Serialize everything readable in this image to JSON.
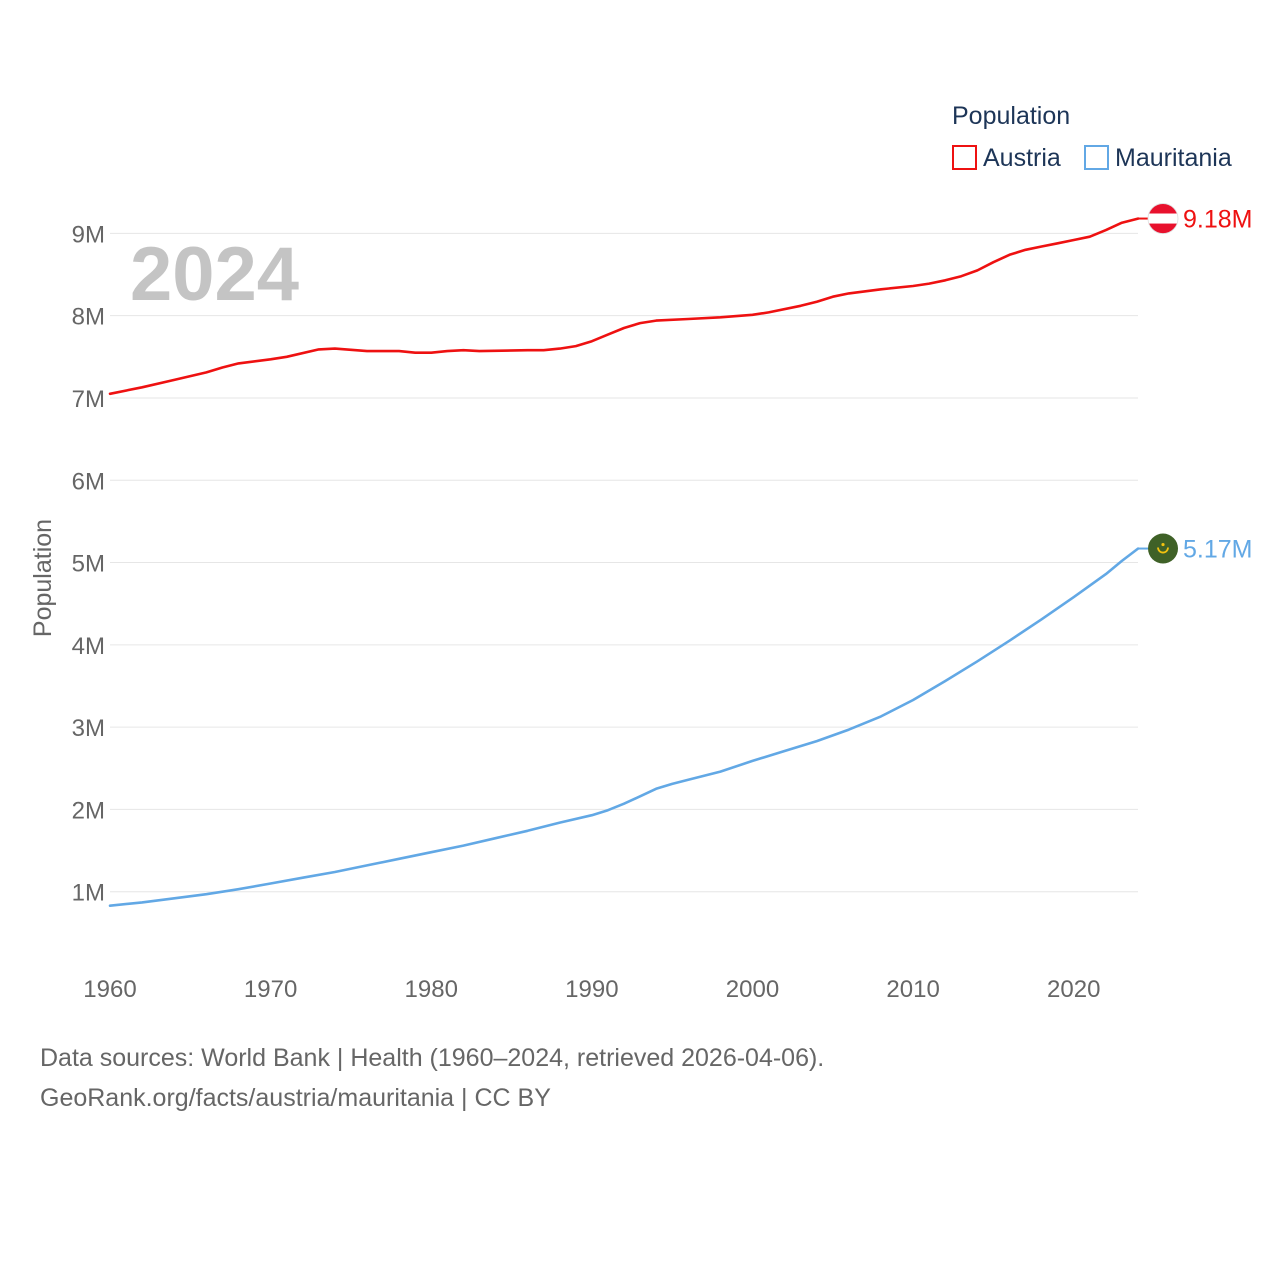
{
  "chart_data": {
    "type": "line",
    "title": "",
    "year_display": "2024",
    "ylabel": "Population",
    "xlabel": "",
    "xlim": [
      1960,
      2024
    ],
    "ylim": [
      0,
      9600000
    ],
    "x_ticks": [
      1960,
      1970,
      1980,
      1990,
      2000,
      2010,
      2020
    ],
    "x_tick_labels": [
      "1960",
      "1970",
      "1980",
      "1990",
      "2000",
      "2010",
      "2020"
    ],
    "y_ticks": [
      1000000,
      2000000,
      3000000,
      4000000,
      5000000,
      6000000,
      7000000,
      8000000,
      9000000
    ],
    "y_tick_labels": [
      "1M",
      "2M",
      "3M",
      "4M",
      "5M",
      "6M",
      "7M",
      "8M",
      "9M"
    ],
    "grid": true,
    "legend": {
      "title": "Population",
      "placement": "top-right"
    },
    "series": [
      {
        "name": "Austria",
        "color": "#ee1111",
        "end_label": "9.18M",
        "flag_icon": "austria-flag-icon",
        "points": [
          [
            1960,
            7050000
          ],
          [
            1962,
            7130000
          ],
          [
            1964,
            7220000
          ],
          [
            1966,
            7310000
          ],
          [
            1967,
            7370000
          ],
          [
            1968,
            7420000
          ],
          [
            1970,
            7470000
          ],
          [
            1971,
            7500000
          ],
          [
            1973,
            7590000
          ],
          [
            1974,
            7600000
          ],
          [
            1976,
            7570000
          ],
          [
            1978,
            7570000
          ],
          [
            1979,
            7550000
          ],
          [
            1980,
            7550000
          ],
          [
            1981,
            7570000
          ],
          [
            1982,
            7580000
          ],
          [
            1983,
            7570000
          ],
          [
            1986,
            7580000
          ],
          [
            1987,
            7580000
          ],
          [
            1988,
            7600000
          ],
          [
            1989,
            7630000
          ],
          [
            1990,
            7690000
          ],
          [
            1991,
            7770000
          ],
          [
            1992,
            7850000
          ],
          [
            1993,
            7910000
          ],
          [
            1994,
            7940000
          ],
          [
            1996,
            7960000
          ],
          [
            1998,
            7980000
          ],
          [
            2000,
            8010000
          ],
          [
            2001,
            8040000
          ],
          [
            2003,
            8120000
          ],
          [
            2004,
            8170000
          ],
          [
            2005,
            8230000
          ],
          [
            2006,
            8270000
          ],
          [
            2008,
            8320000
          ],
          [
            2010,
            8360000
          ],
          [
            2011,
            8390000
          ],
          [
            2012,
            8430000
          ],
          [
            2013,
            8480000
          ],
          [
            2014,
            8550000
          ],
          [
            2015,
            8650000
          ],
          [
            2016,
            8740000
          ],
          [
            2017,
            8800000
          ],
          [
            2018,
            8840000
          ],
          [
            2019,
            8880000
          ],
          [
            2020,
            8920000
          ],
          [
            2021,
            8960000
          ],
          [
            2022,
            9040000
          ],
          [
            2023,
            9130000
          ],
          [
            2024,
            9180000
          ]
        ]
      },
      {
        "name": "Mauritania",
        "color": "#62a8e5",
        "end_label": "5.17M",
        "flag_icon": "mauritania-flag-icon",
        "points": [
          [
            1960,
            830000
          ],
          [
            1962,
            870000
          ],
          [
            1964,
            920000
          ],
          [
            1966,
            970000
          ],
          [
            1968,
            1030000
          ],
          [
            1970,
            1100000
          ],
          [
            1972,
            1170000
          ],
          [
            1974,
            1240000
          ],
          [
            1976,
            1320000
          ],
          [
            1978,
            1400000
          ],
          [
            1980,
            1480000
          ],
          [
            1982,
            1560000
          ],
          [
            1984,
            1650000
          ],
          [
            1986,
            1740000
          ],
          [
            1988,
            1840000
          ],
          [
            1990,
            1930000
          ],
          [
            1991,
            1990000
          ],
          [
            1992,
            2070000
          ],
          [
            1993,
            2160000
          ],
          [
            1994,
            2250000
          ],
          [
            1995,
            2310000
          ],
          [
            1996,
            2360000
          ],
          [
            1998,
            2460000
          ],
          [
            2000,
            2590000
          ],
          [
            2002,
            2710000
          ],
          [
            2004,
            2830000
          ],
          [
            2006,
            2970000
          ],
          [
            2008,
            3130000
          ],
          [
            2010,
            3330000
          ],
          [
            2012,
            3560000
          ],
          [
            2014,
            3800000
          ],
          [
            2016,
            4050000
          ],
          [
            2018,
            4310000
          ],
          [
            2020,
            4580000
          ],
          [
            2022,
            4860000
          ],
          [
            2023,
            5020000
          ],
          [
            2024,
            5170000
          ]
        ]
      }
    ]
  },
  "footer": {
    "line1": "Data sources: World Bank | Health (1960–2024, retrieved 2026-04-06).",
    "line2": "GeoRank.org/facts/austria/mauritania | CC BY"
  }
}
